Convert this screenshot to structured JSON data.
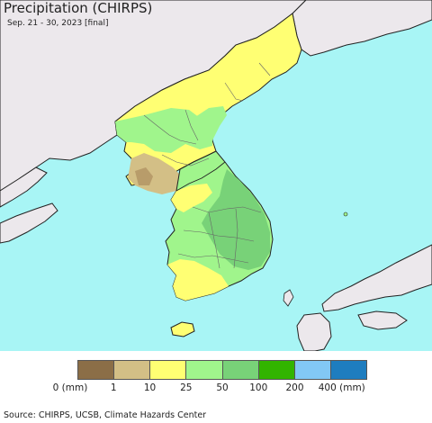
{
  "header": {
    "title": "Precipitation (CHIRPS)",
    "subtitle": "Sep. 21 - 30, 2023 [final]"
  },
  "map": {
    "colors": {
      "ocean": "#a8f5f5",
      "foreign_land": "#ece8ec",
      "border": "#222222",
      "admin": "#666666"
    }
  },
  "legend": {
    "bins": [
      {
        "color": "#8b6e47"
      },
      {
        "color": "#d3bf86"
      },
      {
        "color": "#ffff73"
      },
      {
        "color": "#a0f58c"
      },
      {
        "color": "#78d278"
      },
      {
        "color": "#32b400"
      },
      {
        "color": "#82c8f5"
      },
      {
        "color": "#1e7dbf"
      }
    ],
    "ticks": [
      "0 (mm)",
      "1",
      "10",
      "25",
      "50",
      "100",
      "200",
      "400 (mm)"
    ]
  },
  "footer": {
    "source": "Source: CHIRPS, UCSB, Climate Hazards Center"
  }
}
